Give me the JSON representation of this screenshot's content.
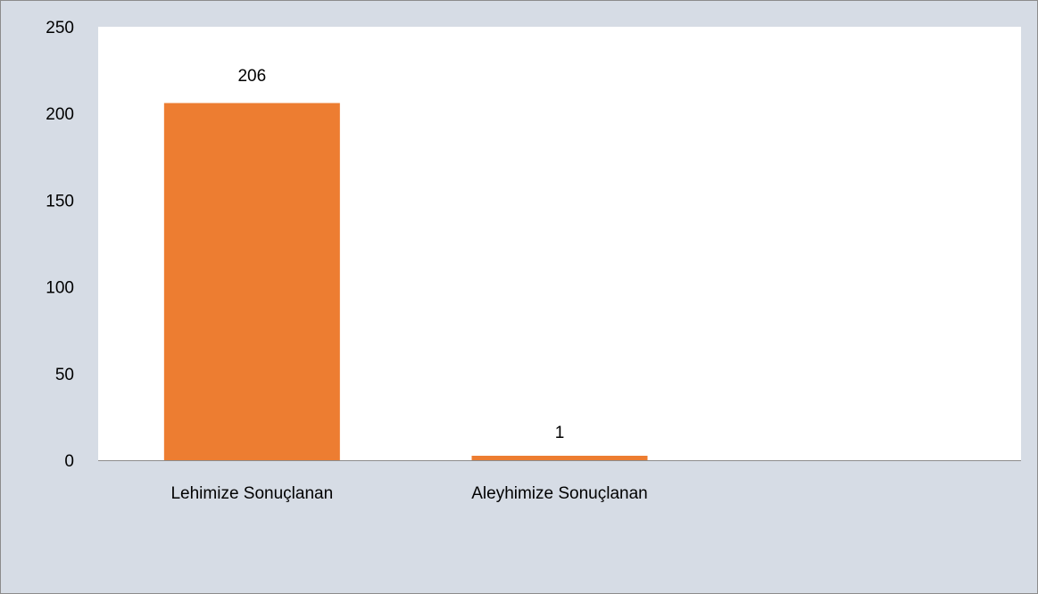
{
  "chart_data": {
    "type": "bar",
    "categories": [
      "Lehimize Sonuçlanan",
      "Aleyhimize Sonuçlanan",
      ""
    ],
    "values": [
      206,
      1,
      null
    ],
    "data_labels": [
      "206",
      "1",
      ""
    ],
    "title": "",
    "xlabel": "",
    "ylabel": "",
    "ylim": [
      0,
      250
    ],
    "yticks": [
      0,
      50,
      100,
      150,
      200,
      250
    ],
    "grid": false,
    "legend": "none",
    "colors": {
      "bar": "#ed7d31",
      "plot_background": "#ffffff",
      "chart_background": "#d6dce5",
      "axis": "#8c8c8c"
    }
  }
}
